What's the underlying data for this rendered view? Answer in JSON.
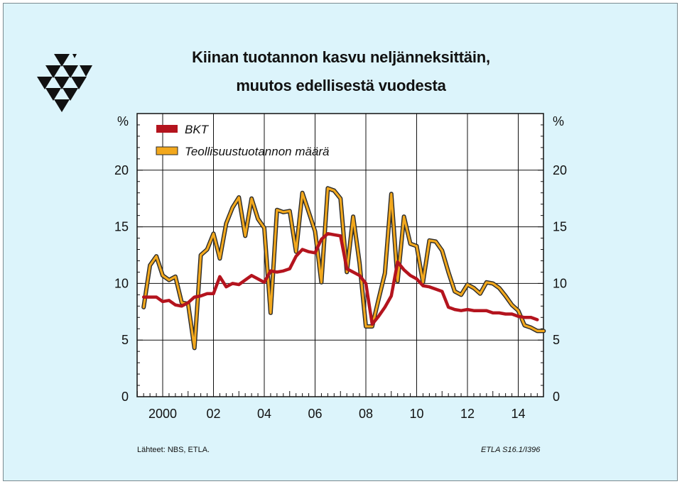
{
  "title_line1": "Kiinan tuotannon kasvu neljänneksittäin,",
  "title_line2": "muutos edellisestä vuodesta",
  "source": "Lähteet:   NBS, ETLA.",
  "code": "ETLA S16.1/I396",
  "colors": {
    "background": "#dcf4fb",
    "plot_background": "#ffffff",
    "bkt": "#b4141e",
    "industry": "#f2a81d",
    "industry_outline": "#2a2a2a"
  },
  "chart_data": {
    "type": "line",
    "x_start_year": 2000,
    "x_end_year": 2016,
    "x_tick_labels": [
      "2000",
      "02",
      "04",
      "06",
      "08",
      "10",
      "12",
      "14"
    ],
    "x_tick_years": [
      2000,
      2002,
      2004,
      2006,
      2008,
      2010,
      2012,
      2014
    ],
    "y_unit_label": "%",
    "ylim": [
      0,
      25
    ],
    "y_ticks": [
      0,
      5,
      10,
      15,
      20
    ],
    "grid": true,
    "legend_position": "top-left",
    "series": [
      {
        "name": "BKT",
        "start_year": 1999.25,
        "values": [
          8.8,
          8.8,
          8.8,
          8.4,
          8.5,
          8.1,
          8.0,
          8.3,
          8.8,
          8.9,
          9.1,
          9.1,
          10.6,
          9.7,
          10.0,
          9.9,
          10.3,
          10.7,
          10.4,
          10.1,
          11.1,
          11.0,
          11.1,
          11.3,
          12.4,
          13.0,
          12.8,
          12.7,
          13.9,
          14.4,
          14.3,
          14.2,
          11.3,
          11.0,
          10.7,
          10.0,
          6.4,
          7.1,
          7.9,
          8.9,
          11.9,
          11.2,
          10.7,
          10.4,
          9.8,
          9.7,
          9.5,
          9.3,
          7.9,
          7.7,
          7.6,
          7.7,
          7.6,
          7.6,
          7.6,
          7.4,
          7.4,
          7.3,
          7.3,
          7.1,
          7.0,
          7.0,
          6.8
        ]
      },
      {
        "name": "Teollisuustuotannon määrä",
        "start_year": 1999.25,
        "values": [
          7.9,
          11.6,
          12.4,
          10.7,
          10.3,
          10.6,
          8.3,
          8.2,
          4.3,
          12.5,
          13.0,
          14.4,
          12.2,
          15.3,
          16.7,
          17.6,
          14.2,
          17.5,
          15.7,
          14.9,
          7.4,
          16.5,
          16.3,
          16.4,
          12.8,
          18.0,
          16.3,
          14.6,
          10.1,
          18.4,
          18.2,
          17.5,
          11.0,
          15.9,
          11.8,
          6.2,
          6.2,
          8.6,
          10.9,
          17.9,
          10.2,
          15.9,
          13.5,
          13.3,
          10.1,
          13.8,
          13.7,
          12.9,
          11.0,
          9.3,
          9.0,
          9.9,
          9.6,
          9.1,
          10.1,
          10.0,
          9.6,
          8.9,
          8.1,
          7.6,
          6.3,
          6.1,
          5.8,
          5.8
        ]
      }
    ]
  }
}
